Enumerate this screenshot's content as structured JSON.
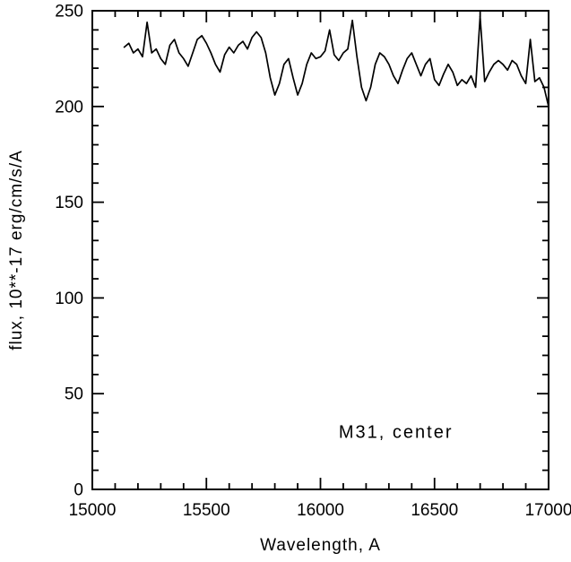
{
  "chart_data": {
    "type": "line",
    "title": "",
    "xlabel": "Wavelength, A",
    "ylabel": "flux, 10**-17 erg/cm/s/A",
    "annotation": "M31, center",
    "annotation_pos": {
      "x": 16080,
      "y": 27
    },
    "xlim": [
      15000,
      17000
    ],
    "ylim": [
      0,
      250
    ],
    "x_major_ticks": [
      15000,
      15500,
      16000,
      16500,
      17000
    ],
    "x_tick_labels": [
      "15000",
      "15500",
      "16000",
      "16500",
      "17000"
    ],
    "x_minor_step": 100,
    "y_major_ticks": [
      0,
      50,
      100,
      150,
      200,
      250
    ],
    "y_tick_labels": [
      "0",
      "50",
      "100",
      "150",
      "200",
      "250"
    ],
    "y_minor_step": 10,
    "grid": false,
    "legend": false,
    "line_color": "#000000",
    "axis_color": "#000000",
    "background_color": "#ffffff",
    "series": [
      {
        "name": "M31 center spectrum",
        "x": [
          15140,
          15160,
          15180,
          15200,
          15220,
          15240,
          15260,
          15280,
          15300,
          15320,
          15340,
          15360,
          15380,
          15400,
          15420,
          15440,
          15460,
          15480,
          15500,
          15520,
          15540,
          15560,
          15580,
          15600,
          15620,
          15640,
          15660,
          15680,
          15700,
          15720,
          15740,
          15760,
          15780,
          15800,
          15820,
          15840,
          15860,
          15880,
          15900,
          15920,
          15940,
          15960,
          15980,
          16000,
          16020,
          16040,
          16060,
          16080,
          16100,
          16120,
          16140,
          16160,
          16180,
          16200,
          16220,
          16240,
          16260,
          16280,
          16300,
          16320,
          16340,
          16360,
          16380,
          16400,
          16420,
          16440,
          16460,
          16480,
          16500,
          16520,
          16540,
          16560,
          16580,
          16600,
          16620,
          16640,
          16660,
          16680,
          16700,
          16720,
          16740,
          16760,
          16780,
          16800,
          16820,
          16840,
          16860,
          16880,
          16900,
          16920,
          16940,
          16960,
          16980,
          17000
        ],
        "flux": [
          231,
          233,
          228,
          230,
          226,
          244,
          228,
          230,
          225,
          222,
          232,
          235,
          228,
          225,
          221,
          228,
          235,
          237,
          233,
          228,
          222,
          218,
          227,
          231,
          228,
          232,
          234,
          230,
          236,
          239,
          236,
          228,
          215,
          206,
          212,
          222,
          225,
          215,
          206,
          212,
          222,
          228,
          225,
          226,
          229,
          240,
          227,
          224,
          228,
          230,
          245,
          226,
          210,
          203,
          210,
          222,
          228,
          226,
          222,
          216,
          212,
          219,
          225,
          228,
          222,
          216,
          222,
          225,
          214,
          211,
          217,
          222,
          218,
          211,
          214,
          212,
          216,
          210,
          247,
          213,
          218,
          222,
          224,
          222,
          219,
          224,
          222,
          216,
          212,
          235,
          213,
          215,
          210,
          200
        ]
      }
    ]
  }
}
